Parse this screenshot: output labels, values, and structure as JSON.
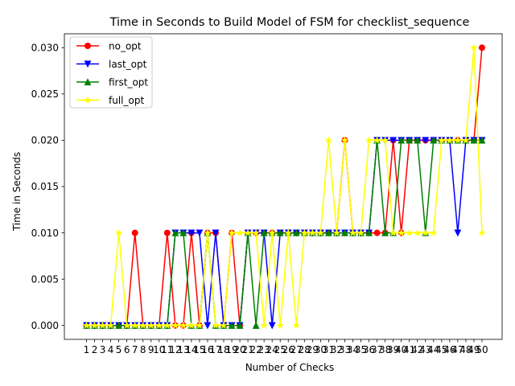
{
  "chart_data": {
    "type": "line",
    "title": "Time in Seconds to Build Model of FSM for checklist_sequence",
    "xlabel": "Number of Checks",
    "ylabel": "Time in Seconds",
    "x": [
      1,
      2,
      3,
      4,
      5,
      6,
      7,
      8,
      9,
      10,
      11,
      12,
      13,
      14,
      15,
      16,
      17,
      18,
      19,
      20,
      21,
      22,
      23,
      24,
      25,
      26,
      27,
      28,
      29,
      30,
      31,
      32,
      33,
      34,
      35,
      36,
      37,
      38,
      39,
      40,
      41,
      42,
      43,
      44,
      45,
      46,
      47,
      48,
      49,
      50
    ],
    "ylim": [
      -0.0015,
      0.0315
    ],
    "yticks": [
      0.0,
      0.005,
      0.01,
      0.015,
      0.02,
      0.025,
      0.03
    ],
    "ytick_labels": [
      "0.000",
      "0.005",
      "0.010",
      "0.015",
      "0.020",
      "0.025",
      "0.030"
    ],
    "legend_position": "upper-left",
    "grid": false,
    "series": [
      {
        "name": "no_opt",
        "color": "#ff0000",
        "marker": "circle",
        "values": [
          0,
          0,
          0,
          0,
          0,
          0,
          0.01,
          0,
          0,
          0,
          0.01,
          0,
          0,
          0.01,
          0,
          0.01,
          0.01,
          0,
          0.01,
          0,
          0.01,
          0.01,
          0.01,
          0.01,
          0.01,
          0.01,
          0.01,
          0.01,
          0.01,
          0.01,
          0.01,
          0.01,
          0.02,
          0.01,
          0.01,
          0.01,
          0.01,
          0.01,
          0.02,
          0.01,
          0.02,
          0.02,
          0.02,
          0.02,
          0.02,
          0.02,
          0.02,
          0.02,
          0.02,
          0.03
        ]
      },
      {
        "name": "last_opt",
        "color": "#0000ff",
        "marker": "triangle-down",
        "values": [
          0,
          0,
          0,
          0,
          0,
          0,
          0,
          0,
          0,
          0,
          0,
          0.01,
          0.01,
          0.01,
          0.01,
          0,
          0.01,
          0,
          0,
          0,
          0.01,
          0.01,
          0.01,
          0,
          0.01,
          0.01,
          0.01,
          0.01,
          0.01,
          0.01,
          0.01,
          0.01,
          0.01,
          0.01,
          0.01,
          0.01,
          0.02,
          0.02,
          0.02,
          0.02,
          0.02,
          0.02,
          0.02,
          0.02,
          0.02,
          0.02,
          0.01,
          0.02,
          0.02,
          0.02
        ]
      },
      {
        "name": "first_opt",
        "color": "#008000",
        "marker": "triangle-up",
        "values": [
          0,
          0,
          0,
          0,
          0,
          0,
          0,
          0,
          0,
          0,
          0,
          0.01,
          0.01,
          0,
          0,
          0.01,
          0,
          0,
          0,
          0,
          0.01,
          0,
          0.01,
          0.01,
          0.01,
          0.01,
          0.01,
          0.01,
          0.01,
          0.01,
          0.01,
          0.01,
          0.01,
          0.01,
          0.01,
          0.01,
          0.02,
          0.01,
          0.01,
          0.02,
          0.02,
          0.02,
          0.01,
          0.02,
          0.02,
          0.02,
          0.02,
          0.02,
          0.02,
          0.02
        ]
      },
      {
        "name": "full_opt",
        "color": "#ffff00",
        "marker": "star",
        "values": [
          0,
          0,
          0,
          0,
          0.01,
          0,
          0,
          0,
          0,
          0,
          0,
          0,
          0,
          0,
          0,
          0.01,
          0,
          0,
          0.01,
          0.01,
          0.01,
          0.01,
          0,
          0.01,
          0,
          0.01,
          0,
          0.01,
          0.01,
          0.01,
          0.02,
          0.01,
          0.02,
          0.01,
          0.01,
          0.02,
          0.02,
          0.02,
          0.01,
          0.01,
          0.01,
          0.01,
          0.01,
          0.01,
          0.02,
          0.02,
          0.02,
          0.02,
          0.03,
          0.01
        ]
      }
    ]
  }
}
